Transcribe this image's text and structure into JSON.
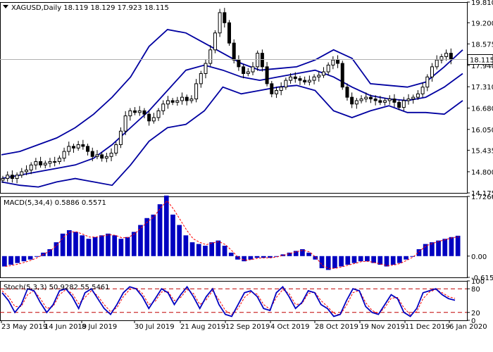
{
  "chart_data": [
    {
      "type": "candlestick",
      "title": "XAGUSD,Daily",
      "ohlc": {
        "open": "18.119",
        "high": "18.129",
        "low": "17.923",
        "close": "18.115"
      },
      "last_price_label": "18.115",
      "ylim": [
        14.175,
        19.81
      ],
      "yticks": [
        "19.810",
        "19.200",
        "18.575",
        "17.940",
        "17.310",
        "16.680",
        "16.050",
        "15.435",
        "14.800",
        "14.175"
      ],
      "x_labels": [
        "23 May 2019",
        "14 Jun 2019",
        "8 Jul 2019",
        "30 Jul 2019",
        "21 Aug 2019",
        "12 Sep 2019",
        "4 Oct 2019",
        "28 Oct 2019",
        "19 Nov 2019",
        "11 Dec 2019",
        "6 Jan 2020"
      ],
      "colors": {
        "candle": "#000000",
        "bands": "#0000a0",
        "price_line": "#b0b0b0"
      },
      "close_path": [
        14.6,
        14.7,
        14.6,
        14.7,
        14.8,
        14.85,
        15.0,
        15.1,
        15.0,
        15.05,
        15.1,
        15.1,
        15.2,
        15.4,
        15.55,
        15.5,
        15.6,
        15.55,
        15.4,
        15.25,
        15.3,
        15.2,
        15.25,
        15.35,
        15.6,
        16.0,
        16.45,
        16.6,
        16.55,
        16.6,
        16.5,
        16.3,
        16.4,
        16.6,
        16.8,
        16.9,
        16.85,
        16.9,
        17.0,
        16.9,
        16.95,
        17.4,
        17.7,
        18.0,
        18.4,
        18.9,
        19.5,
        19.2,
        18.6,
        18.1,
        17.9,
        17.7,
        17.75,
        17.9,
        18.3,
        17.9,
        17.4,
        17.1,
        17.2,
        17.3,
        17.5,
        17.6,
        17.55,
        17.5,
        17.45,
        17.5,
        17.6,
        17.65,
        17.75,
        17.95,
        18.1,
        18.0,
        17.3,
        17.0,
        16.8,
        16.9,
        16.95,
        17.0,
        16.95,
        16.9,
        16.85,
        16.9,
        16.95,
        16.85,
        16.7,
        16.9,
        16.95,
        17.0,
        17.1,
        17.3,
        17.6,
        17.9,
        18.1,
        18.2,
        18.3,
        18.115
      ],
      "bollinger": {
        "upper": [
          15.3,
          15.4,
          15.6,
          15.8,
          16.1,
          16.5,
          17.0,
          17.6,
          18.5,
          19.0,
          18.9,
          18.6,
          18.3,
          18.0,
          17.8,
          17.85,
          17.9,
          18.1,
          18.4,
          18.15,
          17.4,
          17.35,
          17.3,
          17.45,
          17.9,
          18.4
        ],
        "middle": [
          14.6,
          14.7,
          14.8,
          14.9,
          15.0,
          15.2,
          15.6,
          16.1,
          16.6,
          17.2,
          17.8,
          17.95,
          17.8,
          17.6,
          17.5,
          17.6,
          17.7,
          17.8,
          17.6,
          17.3,
          17.05,
          16.95,
          16.9,
          17.0,
          17.3,
          17.7
        ],
        "lower": [
          14.5,
          14.4,
          14.35,
          14.5,
          14.6,
          14.5,
          14.4,
          15.0,
          15.7,
          16.1,
          16.2,
          16.6,
          17.3,
          17.1,
          17.2,
          17.3,
          17.35,
          17.2,
          16.6,
          16.4,
          16.6,
          16.75,
          16.55,
          16.55,
          16.5,
          16.9
        ]
      }
    },
    {
      "type": "bar",
      "title": "MACD(5,34,4)",
      "values_label": "0.5886 0.5571",
      "ylim": [
        -0.6156,
        1.7266
      ],
      "yticks": [
        "1.7266",
        "0.00",
        "-0.6156"
      ],
      "colors": {
        "bars": "#0000c0",
        "signal": "#ff0000"
      },
      "values": [
        -0.3,
        -0.25,
        -0.2,
        -0.15,
        -0.1,
        0.0,
        0.1,
        0.2,
        0.4,
        0.65,
        0.75,
        0.7,
        0.6,
        0.5,
        0.55,
        0.6,
        0.65,
        0.6,
        0.5,
        0.55,
        0.7,
        0.9,
        1.1,
        1.2,
        1.5,
        1.75,
        1.2,
        0.9,
        0.6,
        0.4,
        0.35,
        0.3,
        0.4,
        0.45,
        0.3,
        0.1,
        -0.1,
        -0.15,
        -0.1,
        -0.05,
        -0.05,
        -0.05,
        0.0,
        0.05,
        0.1,
        0.15,
        0.2,
        0.1,
        -0.1,
        -0.35,
        -0.4,
        -0.35,
        -0.3,
        -0.25,
        -0.2,
        -0.15,
        -0.15,
        -0.2,
        -0.25,
        -0.3,
        -0.25,
        -0.2,
        -0.1,
        0.0,
        0.2,
        0.35,
        0.4,
        0.45,
        0.5,
        0.55,
        0.5886
      ],
      "signal": [
        -0.3,
        -0.27,
        -0.23,
        -0.18,
        -0.12,
        -0.04,
        0.06,
        0.16,
        0.32,
        0.55,
        0.7,
        0.7,
        0.63,
        0.55,
        0.55,
        0.58,
        0.62,
        0.6,
        0.53,
        0.54,
        0.65,
        0.82,
        1.0,
        1.15,
        1.4,
        1.6,
        1.35,
        1.05,
        0.75,
        0.5,
        0.4,
        0.33,
        0.38,
        0.42,
        0.33,
        0.15,
        -0.05,
        -0.12,
        -0.1,
        -0.06,
        -0.05,
        -0.05,
        -0.02,
        0.03,
        0.08,
        0.13,
        0.17,
        0.12,
        -0.05,
        -0.28,
        -0.36,
        -0.35,
        -0.31,
        -0.26,
        -0.21,
        -0.16,
        -0.15,
        -0.19,
        -0.23,
        -0.28,
        -0.26,
        -0.21,
        -0.12,
        -0.02,
        0.15,
        0.3,
        0.37,
        0.43,
        0.48,
        0.53,
        0.5571
      ]
    },
    {
      "type": "line",
      "title": "Stoch(5,3,3)",
      "values_label": "50.9282 55.5461",
      "ylim": [
        0,
        100
      ],
      "yticks": [
        "100",
        "80",
        "20",
        "0"
      ],
      "levels": [
        80,
        20
      ],
      "colors": {
        "main": "#0000c0",
        "signal": "#ff0000",
        "levels": "#c00000"
      },
      "main": [
        70,
        50,
        20,
        40,
        80,
        75,
        45,
        20,
        40,
        75,
        80,
        60,
        30,
        70,
        80,
        55,
        30,
        15,
        40,
        70,
        85,
        80,
        60,
        30,
        55,
        80,
        70,
        40,
        65,
        85,
        60,
        30,
        60,
        80,
        40,
        15,
        10,
        40,
        70,
        75,
        60,
        30,
        25,
        70,
        85,
        60,
        30,
        45,
        75,
        70,
        40,
        30,
        10,
        15,
        50,
        80,
        75,
        35,
        20,
        15,
        40,
        65,
        55,
        20,
        10,
        30,
        70,
        75,
        80,
        65,
        55,
        50.93
      ],
      "signal": [
        75,
        60,
        35,
        35,
        65,
        75,
        55,
        30,
        35,
        65,
        78,
        68,
        42,
        58,
        75,
        62,
        40,
        22,
        32,
        60,
        78,
        82,
        68,
        40,
        48,
        72,
        73,
        50,
        58,
        78,
        68,
        40,
        52,
        75,
        52,
        25,
        15,
        30,
        58,
        72,
        66,
        40,
        28,
        58,
        78,
        68,
        40,
        42,
        68,
        72,
        50,
        35,
        18,
        14,
        38,
        70,
        76,
        45,
        25,
        17,
        32,
        56,
        58,
        32,
        14,
        22,
        55,
        72,
        78,
        70,
        60,
        55.55
      ]
    }
  ]
}
